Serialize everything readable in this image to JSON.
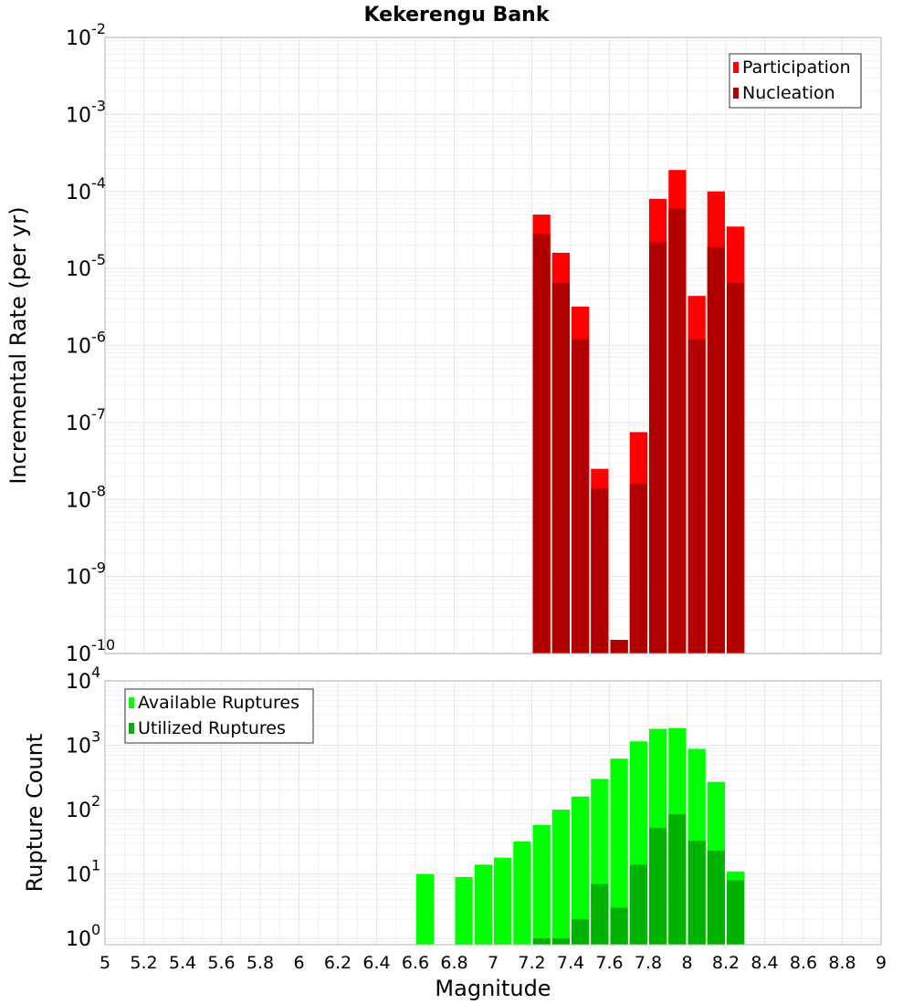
{
  "title": "Kekerengu Bank",
  "xlabel": "Magnitude",
  "x_ticks": [
    "5",
    "5.2",
    "5.4",
    "5.6",
    "5.8",
    "6",
    "6.2",
    "6.4",
    "6.6",
    "6.8",
    "7",
    "7.2",
    "7.4",
    "7.6",
    "7.8",
    "8",
    "8.2",
    "8.4",
    "8.6",
    "8.8",
    "9"
  ],
  "colors": {
    "participation": "#ff0000",
    "nucleation": "#b20000",
    "available": "#00ff00",
    "utilized": "#00b200",
    "grid": "#e8e8e8",
    "frame": "#b4b4b4"
  },
  "chart_data": [
    {
      "type": "bar",
      "ylabel": "Incremental Rate (per yr)",
      "yscale": "log",
      "ylim": [
        1e-10,
        0.01
      ],
      "xlim": [
        5,
        9
      ],
      "y_ticks": [
        {
          "base": "10",
          "exp": "-2"
        },
        {
          "base": "10",
          "exp": "-3"
        },
        {
          "base": "10",
          "exp": "-4"
        },
        {
          "base": "10",
          "exp": "-5"
        },
        {
          "base": "10",
          "exp": "-6"
        },
        {
          "base": "10",
          "exp": "-7"
        },
        {
          "base": "10",
          "exp": "-8"
        },
        {
          "base": "10",
          "exp": "-9"
        },
        {
          "base": "10",
          "exp": "-10"
        }
      ],
      "legend_position": "top-right",
      "x": [
        7.25,
        7.35,
        7.45,
        7.55,
        7.65,
        7.75,
        7.85,
        7.95,
        8.05,
        8.15,
        8.25
      ],
      "series": [
        {
          "name": "Participation",
          "values": [
            5e-05,
            1.6e-05,
            3.2e-06,
            2.5e-08,
            1.5e-10,
            7.5e-08,
            8e-05,
            0.00019,
            4.4e-06,
            0.0001,
            3.5e-05
          ]
        },
        {
          "name": "Nucleation",
          "values": [
            2.8e-05,
            6.5e-06,
            1.2e-06,
            1.4e-08,
            1.5e-10,
            1.6e-08,
            2.2e-05,
            6e-05,
            1.2e-06,
            1.9e-05,
            6.5e-06
          ]
        }
      ]
    },
    {
      "type": "bar",
      "ylabel": "Rupture Count",
      "yscale": "log",
      "ylim": [
        0.8,
        10000
      ],
      "xlim": [
        5,
        9
      ],
      "y_ticks": [
        {
          "base": "10",
          "exp": "4"
        },
        {
          "base": "10",
          "exp": "3"
        },
        {
          "base": "10",
          "exp": "2"
        },
        {
          "base": "10",
          "exp": "1"
        },
        {
          "base": "10",
          "exp": "0"
        }
      ],
      "legend_position": "top-left",
      "x": [
        6.65,
        6.75,
        6.85,
        6.95,
        7.05,
        7.15,
        7.25,
        7.35,
        7.45,
        7.55,
        7.65,
        7.75,
        7.85,
        7.95,
        8.05,
        8.15,
        8.25
      ],
      "series": [
        {
          "name": "Available Ruptures",
          "values": [
            10,
            0,
            9,
            14,
            18,
            32,
            58,
            100,
            160,
            300,
            620,
            1150,
            1800,
            1850,
            880,
            270,
            11
          ]
        },
        {
          "name": "Utilized Ruptures",
          "values": [
            0,
            0,
            0,
            0,
            0,
            0,
            1,
            1,
            2,
            7,
            3,
            14,
            52,
            85,
            33,
            23,
            8
          ]
        }
      ]
    }
  ]
}
